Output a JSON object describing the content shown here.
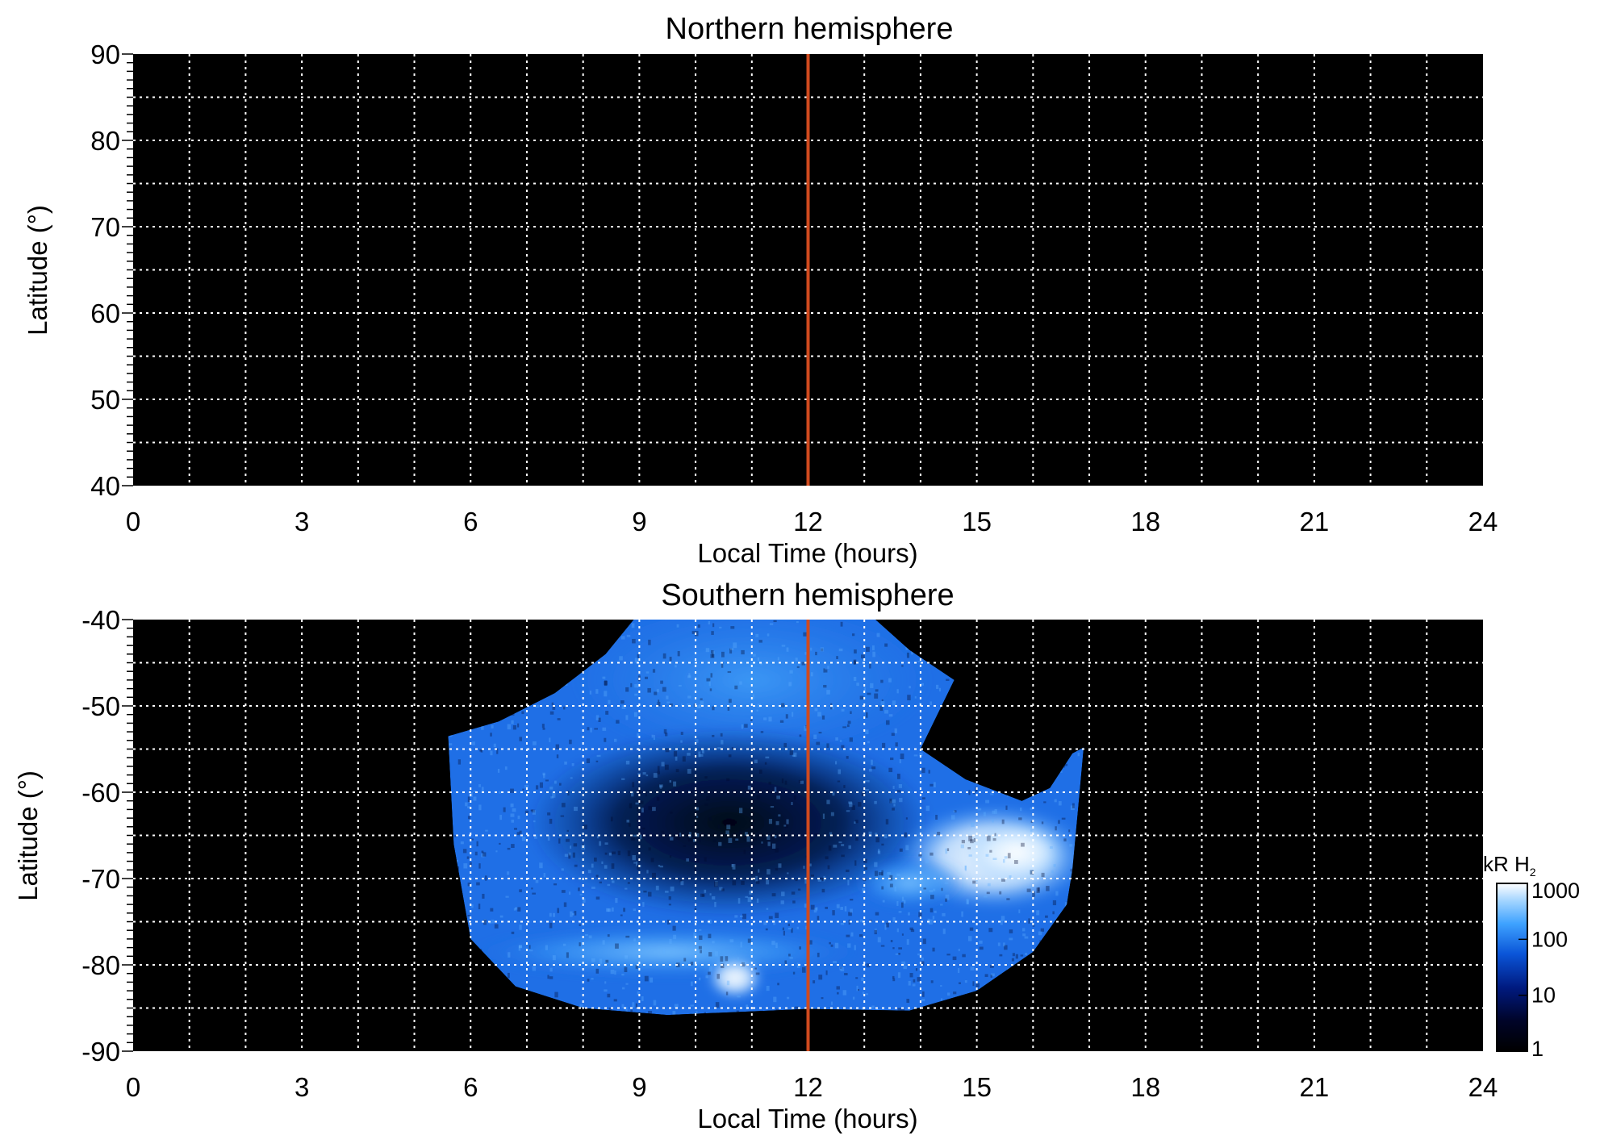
{
  "chart_data": [
    {
      "type": "heatmap",
      "title": "Northern hemisphere",
      "xlabel": "Local Time (hours)",
      "ylabel": "Latitude (°)",
      "xlim": [
        0,
        24
      ],
      "ylim": [
        40,
        90
      ],
      "xticks": [
        0,
        3,
        6,
        9,
        12,
        15,
        18,
        21,
        24
      ],
      "yticks": [
        40,
        50,
        60,
        70,
        80,
        90
      ],
      "grid": true,
      "grid_x_step": 1,
      "grid_y_step": 5,
      "background": "#000000",
      "reference_line": {
        "x": 12,
        "color": "#d04a1e"
      },
      "emission": []
    },
    {
      "type": "heatmap",
      "title": "Southern hemisphere",
      "xlabel": "Local Time (hours)",
      "ylabel": "Latitude (°)",
      "xlim": [
        0,
        24
      ],
      "ylim": [
        -90,
        -40
      ],
      "xticks": [
        0,
        3,
        6,
        9,
        12,
        15,
        18,
        21,
        24
      ],
      "yticks": [
        -90,
        -80,
        -70,
        -60,
        -50,
        -40
      ],
      "grid": true,
      "grid_x_step": 1,
      "grid_y_step": 5,
      "background": "#000000",
      "reference_line": {
        "x": 12,
        "color": "#d04a1e"
      },
      "coverage_boundary": [
        {
          "lt": 5.6,
          "lat": -53.5
        },
        {
          "lt": 6.5,
          "lat": -51.8
        },
        {
          "lt": 7.5,
          "lat": -48.5
        },
        {
          "lt": 8.4,
          "lat": -44.0
        },
        {
          "lt": 8.9,
          "lat": -40.0
        },
        {
          "lt": 13.2,
          "lat": -40.0
        },
        {
          "lt": 13.8,
          "lat": -43.5
        },
        {
          "lt": 14.6,
          "lat": -47.0
        },
        {
          "lt": 14.0,
          "lat": -55.0
        },
        {
          "lt": 14.8,
          "lat": -58.5
        },
        {
          "lt": 15.8,
          "lat": -61.0
        },
        {
          "lt": 16.3,
          "lat": -59.5
        },
        {
          "lt": 16.7,
          "lat": -55.5
        },
        {
          "lt": 16.9,
          "lat": -54.8
        },
        {
          "lt": 16.8,
          "lat": -62.0
        },
        {
          "lt": 16.7,
          "lat": -69.0
        },
        {
          "lt": 16.6,
          "lat": -73.0
        },
        {
          "lt": 16.0,
          "lat": -78.5
        },
        {
          "lt": 15.0,
          "lat": -83.0
        },
        {
          "lt": 13.8,
          "lat": -85.3
        },
        {
          "lt": 12.0,
          "lat": -85.1
        },
        {
          "lt": 9.5,
          "lat": -85.8
        },
        {
          "lt": 8.0,
          "lat": -85.0
        },
        {
          "lt": 6.8,
          "lat": -82.5
        },
        {
          "lt": 6.0,
          "lat": -77.0
        },
        {
          "lt": 5.7,
          "lat": -66.0
        },
        {
          "lt": 5.6,
          "lat": -53.5
        }
      ],
      "regions": [
        {
          "name": "dayside",
          "lt": 11.0,
          "lat": -47.0,
          "rlt": 3.2,
          "rlat": 9.0,
          "level": 150
        },
        {
          "name": "polar-dark",
          "lt": 10.6,
          "lat": -63.5,
          "rlt": 3.6,
          "rlat": 11.0,
          "level": 6
        },
        {
          "name": "oval-afternoon",
          "lt": 15.3,
          "lat": -67.5,
          "rlt": 1.7,
          "rlat": 6.0,
          "level": 900
        },
        {
          "name": "oval-afternoon-core",
          "lt": 15.7,
          "lat": -67.0,
          "rlt": 0.9,
          "rlat": 3.5,
          "level": 1000
        },
        {
          "name": "oval-dawn",
          "lt": 9.5,
          "lat": -78.5,
          "rlt": 3.5,
          "rlat": 3.0,
          "level": 250
        },
        {
          "name": "oval-noon-spot",
          "lt": 10.7,
          "lat": -81.5,
          "rlt": 0.5,
          "rlat": 2.5,
          "level": 800
        },
        {
          "name": "oval-pm-band",
          "lt": 13.8,
          "lat": -70.5,
          "rlt": 1.0,
          "rlat": 3.0,
          "level": 400
        }
      ]
    }
  ],
  "colorbar": {
    "label": "kR H",
    "label_sub": "2",
    "scale": "log",
    "range": [
      1,
      1000
    ],
    "ticks": [
      "1",
      "10",
      "100",
      "1000"
    ]
  }
}
